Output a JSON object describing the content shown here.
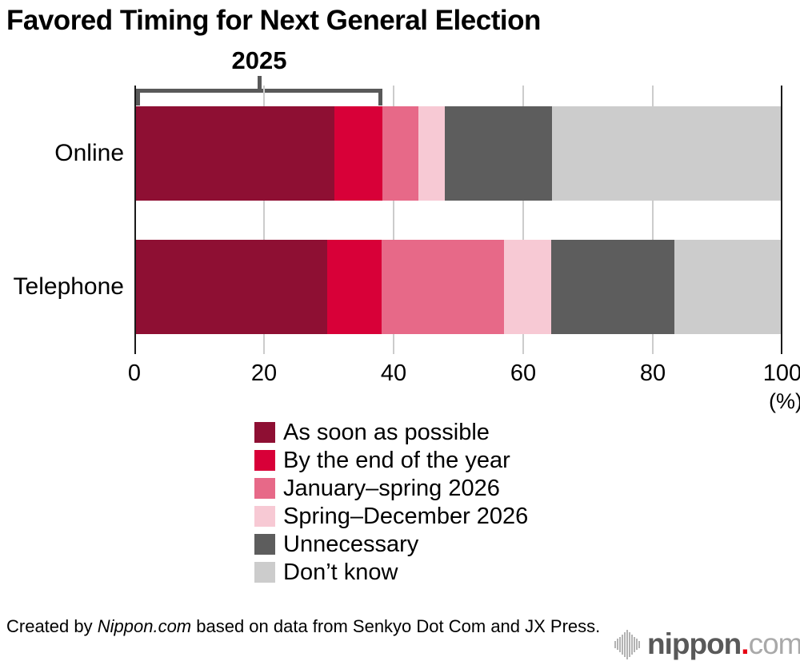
{
  "title": "Favored Timing for Next General Election",
  "annotation": {
    "label": "2025"
  },
  "axis": {
    "ticks": [
      "0",
      "20",
      "40",
      "60",
      "80",
      "100"
    ],
    "unit": "(%)"
  },
  "chart_data": {
    "type": "bar",
    "stacked": true,
    "orientation": "horizontal",
    "title": "Favored Timing for Next General Election",
    "xlabel": "(%)",
    "xlim": [
      0,
      100
    ],
    "grid": "vertical lines at 20/40/60/80",
    "legend_position": "bottom",
    "categories": [
      "Online",
      "Telephone"
    ],
    "series": [
      {
        "name": "As soon as possible",
        "color": "#8E0F33",
        "values": [
          30.9,
          29.8
        ]
      },
      {
        "name": "By the end of the year",
        "color": "#D80038",
        "values": [
          7.4,
          8.4
        ]
      },
      {
        "name": "January–spring 2026",
        "color": "#E76988",
        "values": [
          5.5,
          18.8
        ]
      },
      {
        "name": "Spring–December 2026",
        "color": "#F7C9D4",
        "values": [
          4.1,
          7.3
        ]
      },
      {
        "name": "Unnecessary",
        "color": "#5D5D5D",
        "values": [
          16.5,
          19.0
        ]
      },
      {
        "name": "Don’t know",
        "color": "#CCCCCC",
        "values": [
          35.6,
          16.7
        ]
      }
    ],
    "annotation": {
      "label": "2025",
      "covers_series": [
        "As soon as possible",
        "By the end of the year"
      ],
      "row": "Online"
    }
  },
  "footer": {
    "credit_prefix": "Created by ",
    "credit_source_italic": "Nippon.com",
    "credit_suffix": " based on data from Senkyo Dot Com and JX Press.",
    "logo": {
      "name": "nippon",
      "dot": ".",
      "tld": "com"
    }
  }
}
